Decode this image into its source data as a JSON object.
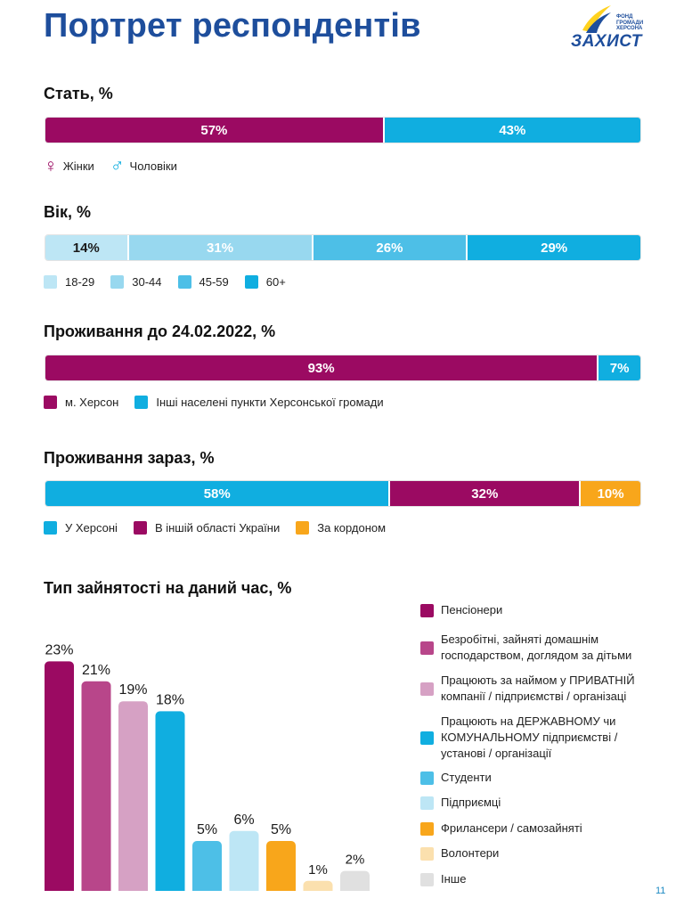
{
  "page": {
    "title": "Портрет респондентів",
    "page_number": "11"
  },
  "logo": {
    "small_line1": "ФОНД",
    "small_line2": "ГРОМАДИ",
    "small_line3": "ХЕРСОНА",
    "word": "ЗАХИСТ",
    "colors": {
      "blue": "#1e4e9c",
      "yellow": "#ffd21f"
    }
  },
  "colors": {
    "magenta": "#9b0a62",
    "blue": "#10aee0",
    "orange": "#f8a61b",
    "age_18_29": "#bde6f5",
    "age_30_44": "#98d8ef",
    "age_45_59": "#4dbfe7",
    "age_60": "#10aee0"
  },
  "chart_data": [
    {
      "type": "bar",
      "orientation": "horizontal-stacked",
      "title": "Стать, %",
      "series": [
        {
          "name": "Жінки",
          "value": 57,
          "label": "57%",
          "color": "#9b0a62"
        },
        {
          "name": "Чоловіки",
          "value": 43,
          "label": "43%",
          "color": "#10aee0"
        }
      ],
      "legend_icons": [
        "female-symbol-icon",
        "male-symbol-icon"
      ]
    },
    {
      "type": "bar",
      "orientation": "horizontal-stacked",
      "title": "Вік, %",
      "series": [
        {
          "name": "18-29",
          "value": 14,
          "label": "14%",
          "color": "#bde6f5",
          "dark_text": true
        },
        {
          "name": "30-44",
          "value": 31,
          "label": "31%",
          "color": "#98d8ef"
        },
        {
          "name": "45-59",
          "value": 26,
          "label": "26%",
          "color": "#4dbfe7"
        },
        {
          "name": "60+",
          "value": 29,
          "label": "29%",
          "color": "#10aee0"
        }
      ]
    },
    {
      "type": "bar",
      "orientation": "horizontal-stacked",
      "title": "Проживання до 24.02.2022, %",
      "series": [
        {
          "name": "м. Херсон",
          "value": 93,
          "label": "93%",
          "color": "#9b0a62"
        },
        {
          "name": "Інші населені пункти Херсонської громади",
          "value": 7,
          "label": "7%",
          "color": "#10aee0"
        }
      ]
    },
    {
      "type": "bar",
      "orientation": "horizontal-stacked",
      "title": "Проживання зараз, %",
      "series": [
        {
          "name": "У Херсоні",
          "value": 58,
          "label": "58%",
          "color": "#10aee0"
        },
        {
          "name": "В іншій області України",
          "value": 32,
          "label": "32%",
          "color": "#9b0a62"
        },
        {
          "name": "За кордоном",
          "value": 10,
          "label": "10%",
          "color": "#f8a61b"
        }
      ]
    },
    {
      "type": "bar",
      "orientation": "vertical",
      "title": "Тип зайнятості на даний час, %",
      "categories": [
        [
          "Пенсіонери"
        ],
        [
          "Безробітні, зайняті домашнім",
          "господарством, доглядом за дітьми"
        ],
        [
          "Працюють за наймом у ПРИВАТНІЙ",
          "компанії / підприємстві / організаці"
        ],
        [
          "Працюють на ДЕРЖАВНОМУ чи",
          "КОМУНАЛЬНОМУ підприємстві /",
          "установі / організації"
        ],
        [
          "Студенти"
        ],
        [
          "Підприємці"
        ],
        [
          "Фрилансери / самозайняті"
        ],
        [
          "Волонтери"
        ],
        [
          "Інше"
        ]
      ],
      "values": [
        23,
        21,
        19,
        18,
        5,
        6,
        5,
        1,
        2
      ],
      "labels": [
        "23%",
        "21%",
        "19%",
        "18%",
        "5%",
        "6%",
        "5%",
        "1%",
        "2%"
      ],
      "colors": [
        "#9b0a62",
        "#b8468a",
        "#d6a1c4",
        "#10aee0",
        "#4dbfe7",
        "#bde6f5",
        "#f8a61b",
        "#fbe0ae",
        "#e0e0e0"
      ]
    }
  ]
}
